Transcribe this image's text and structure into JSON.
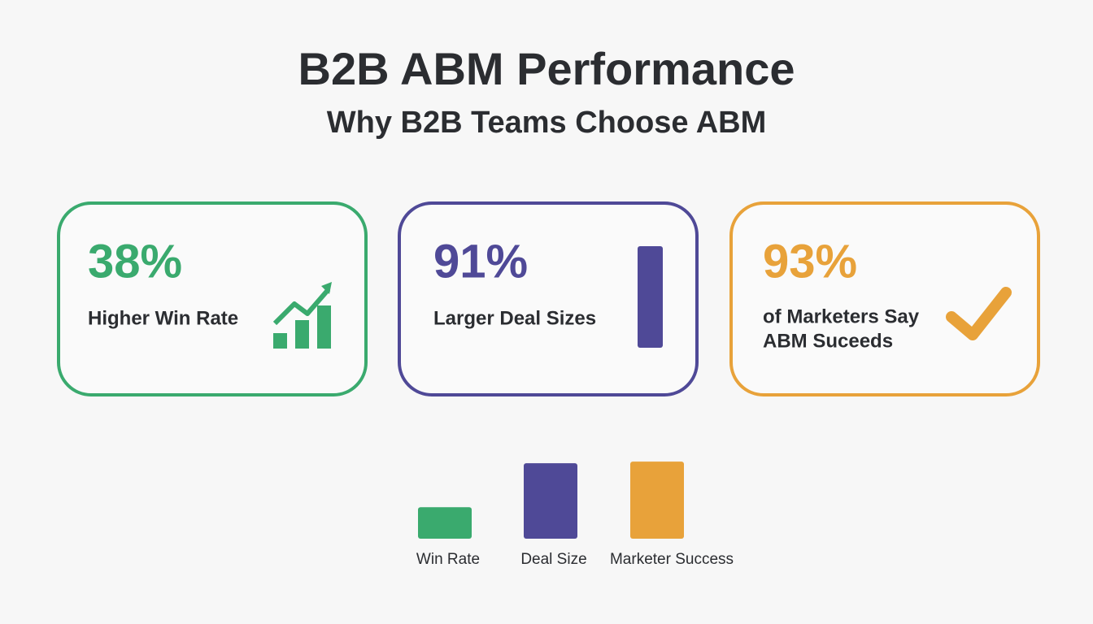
{
  "header": {
    "title": "B2B ABM Performance",
    "subtitle": "Why B2B Teams Choose ABM"
  },
  "cards": [
    {
      "value": "38%",
      "label": [
        "Higher Win Rate"
      ],
      "color": "#3aaa6e"
    },
    {
      "value": "91%",
      "label": [
        "Larger Deal Sizes"
      ],
      "color": "#4f4997"
    },
    {
      "value": "93%",
      "label": [
        "of Marketers Say",
        "ABM Suceeds"
      ],
      "color": "#e8a23a"
    }
  ],
  "chart_data": {
    "type": "bar",
    "categories": [
      "Win Rate",
      "Deal Size",
      "Marketer Success"
    ],
    "values": [
      38,
      91,
      93
    ],
    "colors": [
      "#3aaa6e",
      "#4f4997",
      "#e8a23a"
    ]
  }
}
